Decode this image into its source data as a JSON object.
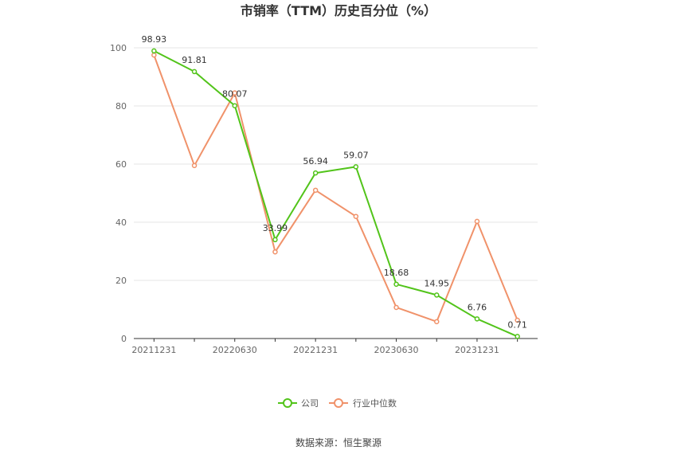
{
  "chart_data": {
    "type": "line",
    "title": "市销率（TTM）历史百分位（%）",
    "xlabel": "",
    "ylabel": "",
    "x": [
      "20211231",
      "20220331",
      "20220630",
      "20220930",
      "20221231",
      "20230331",
      "20230630",
      "20230930",
      "20231231",
      "20240331"
    ],
    "x_tick_labels": [
      "20211231",
      "20220630",
      "20221231",
      "20230630",
      "20231231"
    ],
    "ylim": [
      0,
      100
    ],
    "y_ticks": [
      0,
      20,
      40,
      60,
      80,
      100
    ],
    "grid": true,
    "legend_position": "bottom",
    "series": [
      {
        "name": "公司",
        "color": "#52c41a",
        "values": [
          98.93,
          91.81,
          80.07,
          33.99,
          56.94,
          59.07,
          18.68,
          14.95,
          6.76,
          0.71
        ],
        "labels": [
          "98.93",
          "91.81",
          "80.07",
          "33.99",
          "56.94",
          "59.07",
          "18.68",
          "14.95",
          "6.76",
          "0.71"
        ]
      },
      {
        "name": "行业中位数",
        "color": "#f0926a",
        "values": [
          97.5,
          59.5,
          84.5,
          29.8,
          51.0,
          42.0,
          10.7,
          5.8,
          40.3,
          6.3
        ]
      }
    ]
  },
  "source": "数据来源：恒生聚源"
}
